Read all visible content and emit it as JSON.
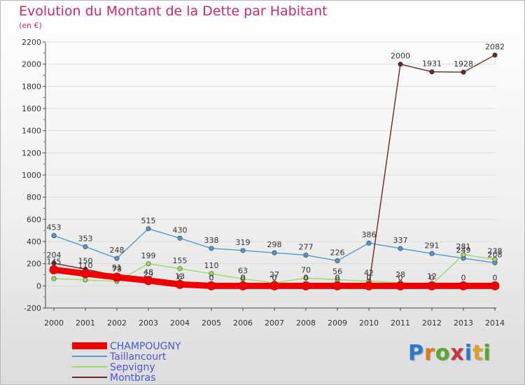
{
  "chart_data": {
    "type": "line",
    "title": "Evolution du Montant de la Dette par Habitant",
    "subtitle": "(en €)",
    "xlabel": "",
    "ylabel": "",
    "categories": [
      "2000",
      "2001",
      "2002",
      "2003",
      "2004",
      "2005",
      "2006",
      "2007",
      "2008",
      "2009",
      "2010",
      "2011",
      "2012",
      "2013",
      "2014"
    ],
    "ylim": [
      -200,
      2200
    ],
    "yticks": [
      -200,
      0,
      200,
      400,
      600,
      800,
      1000,
      1200,
      1400,
      1600,
      1800,
      2000,
      2200
    ],
    "legend_position": "bottom-left",
    "series": [
      {
        "name": "CHAMPOUGNY",
        "color": "#ee0000",
        "values": [
          145,
          110,
          78,
          48,
          13,
          0,
          0,
          0,
          0,
          0,
          0,
          0,
          0,
          0,
          0
        ],
        "labels": [
          "145",
          "110",
          "78",
          "48",
          "13",
          "0",
          "0",
          "0",
          "0",
          "0",
          "0",
          "0",
          "0",
          "0",
          "0"
        ]
      },
      {
        "name": "Taillancourt",
        "color": "#5599cc",
        "values": [
          453,
          353,
          248,
          515,
          430,
          338,
          319,
          298,
          277,
          226,
          386,
          337,
          291,
          249,
          208
        ],
        "labels": [
          "453",
          "353",
          "248",
          "515",
          "430",
          "338",
          "319",
          "298",
          "277",
          "226",
          "386",
          "337",
          "291",
          "249",
          "208"
        ]
      },
      {
        "name": "Sepvigny",
        "color": "#99dd66",
        "values": [
          65,
          53,
          41,
          199,
          155,
          110,
          63,
          27,
          70,
          56,
          42,
          28,
          12,
          281,
          238
        ],
        "labels": [
          "",
          "",
          "",
          "199",
          "155",
          "110",
          "63",
          "27",
          "70",
          "56",
          "42",
          "28",
          "12",
          "281",
          "238"
        ]
      },
      {
        "name": "Montbras",
        "color": "#6b2626",
        "values": [
          204,
          150,
          91,
          29,
          6,
          0,
          0,
          0,
          0,
          0,
          0,
          2000,
          1931,
          1928,
          2082
        ],
        "labels": [
          "204",
          "150",
          "91",
          "29",
          "6",
          "0",
          "0",
          "0",
          "0",
          "0",
          "0",
          "2000",
          "1931",
          "1928",
          "2082"
        ]
      }
    ]
  },
  "logo_text": "Proxiti"
}
